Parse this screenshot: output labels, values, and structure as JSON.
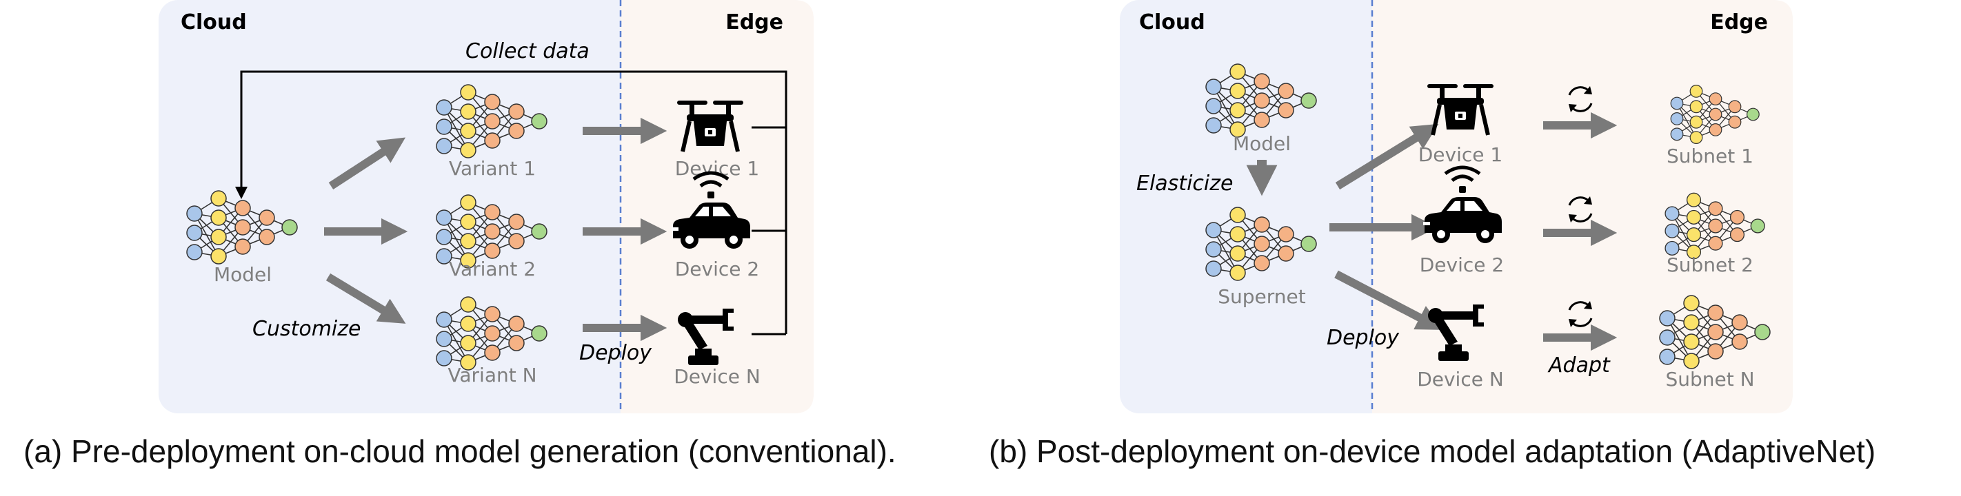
{
  "panel_a": {
    "cloud_label": "Cloud",
    "edge_label": "Edge",
    "collect_label": "Collect data",
    "customize_label": "Customize",
    "deploy_label": "Deploy",
    "model_label": "Model",
    "variants": [
      "Variant 1",
      "Variant 2",
      "Variant N"
    ],
    "devices": [
      "Device 1",
      "Device 2",
      "Device N"
    ],
    "caption": "(a) Pre-deployment on-cloud model generation (conventional)."
  },
  "panel_b": {
    "cloud_label": "Cloud",
    "edge_label": "Edge",
    "model_label": "Model",
    "elasticize_label": "Elasticize",
    "supernet_label": "Supernet",
    "deploy_label": "Deploy",
    "adapt_label": "Adapt",
    "devices": [
      "Device 1",
      "Device 2",
      "Device N"
    ],
    "subnets": [
      "Subnet 1",
      "Subnet 2",
      "Subnet N"
    ],
    "caption": "(b) Post-deployment on-device model adaptation (AdaptiveNet)"
  },
  "colors": {
    "cloud_bg": "#eef1fa",
    "edge_bg": "#fcf6f2",
    "divider": "#5a7fd0",
    "arrow": "#7a7a7a",
    "label_gray": "#7f7f7f",
    "node_blue": "#a9c6ea",
    "node_yellow": "#fbe26a",
    "node_orange": "#f5b285",
    "node_green": "#a8d88c"
  },
  "icons": {
    "network": "neural-network-icon",
    "drone": "drone-icon",
    "car": "autonomous-car-icon",
    "robot_arm": "robot-arm-icon",
    "refresh": "refresh-cycle-icon"
  }
}
